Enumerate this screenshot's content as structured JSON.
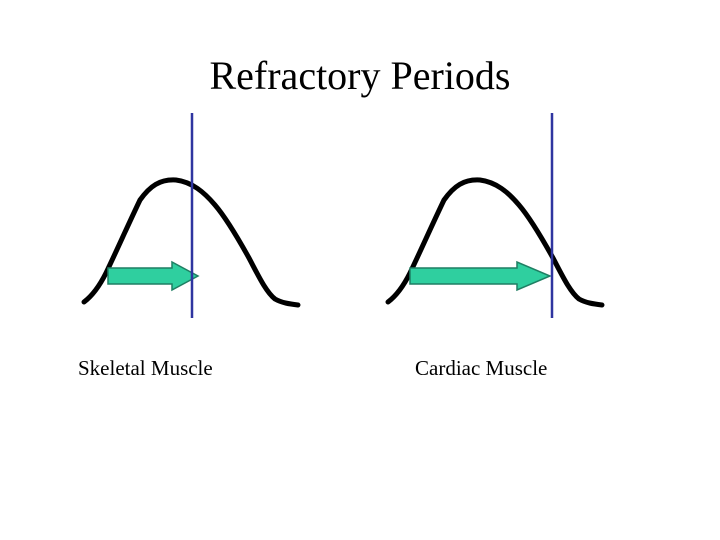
{
  "slide": {
    "title": "Refractory Periods"
  },
  "panels": [
    {
      "label": "Skeletal Muscle",
      "refractory_end_position": "before the end of the contraction curve"
    },
    {
      "label": "Cardiac Muscle",
      "refractory_end_position": "near the end of the contraction curve"
    }
  ],
  "colors": {
    "curve": "#000000",
    "arrow_fill": "#2fcf9f",
    "arrow_stroke": "#1f7f63",
    "marker_line": "#2f35a0",
    "background": "#ffffff"
  }
}
